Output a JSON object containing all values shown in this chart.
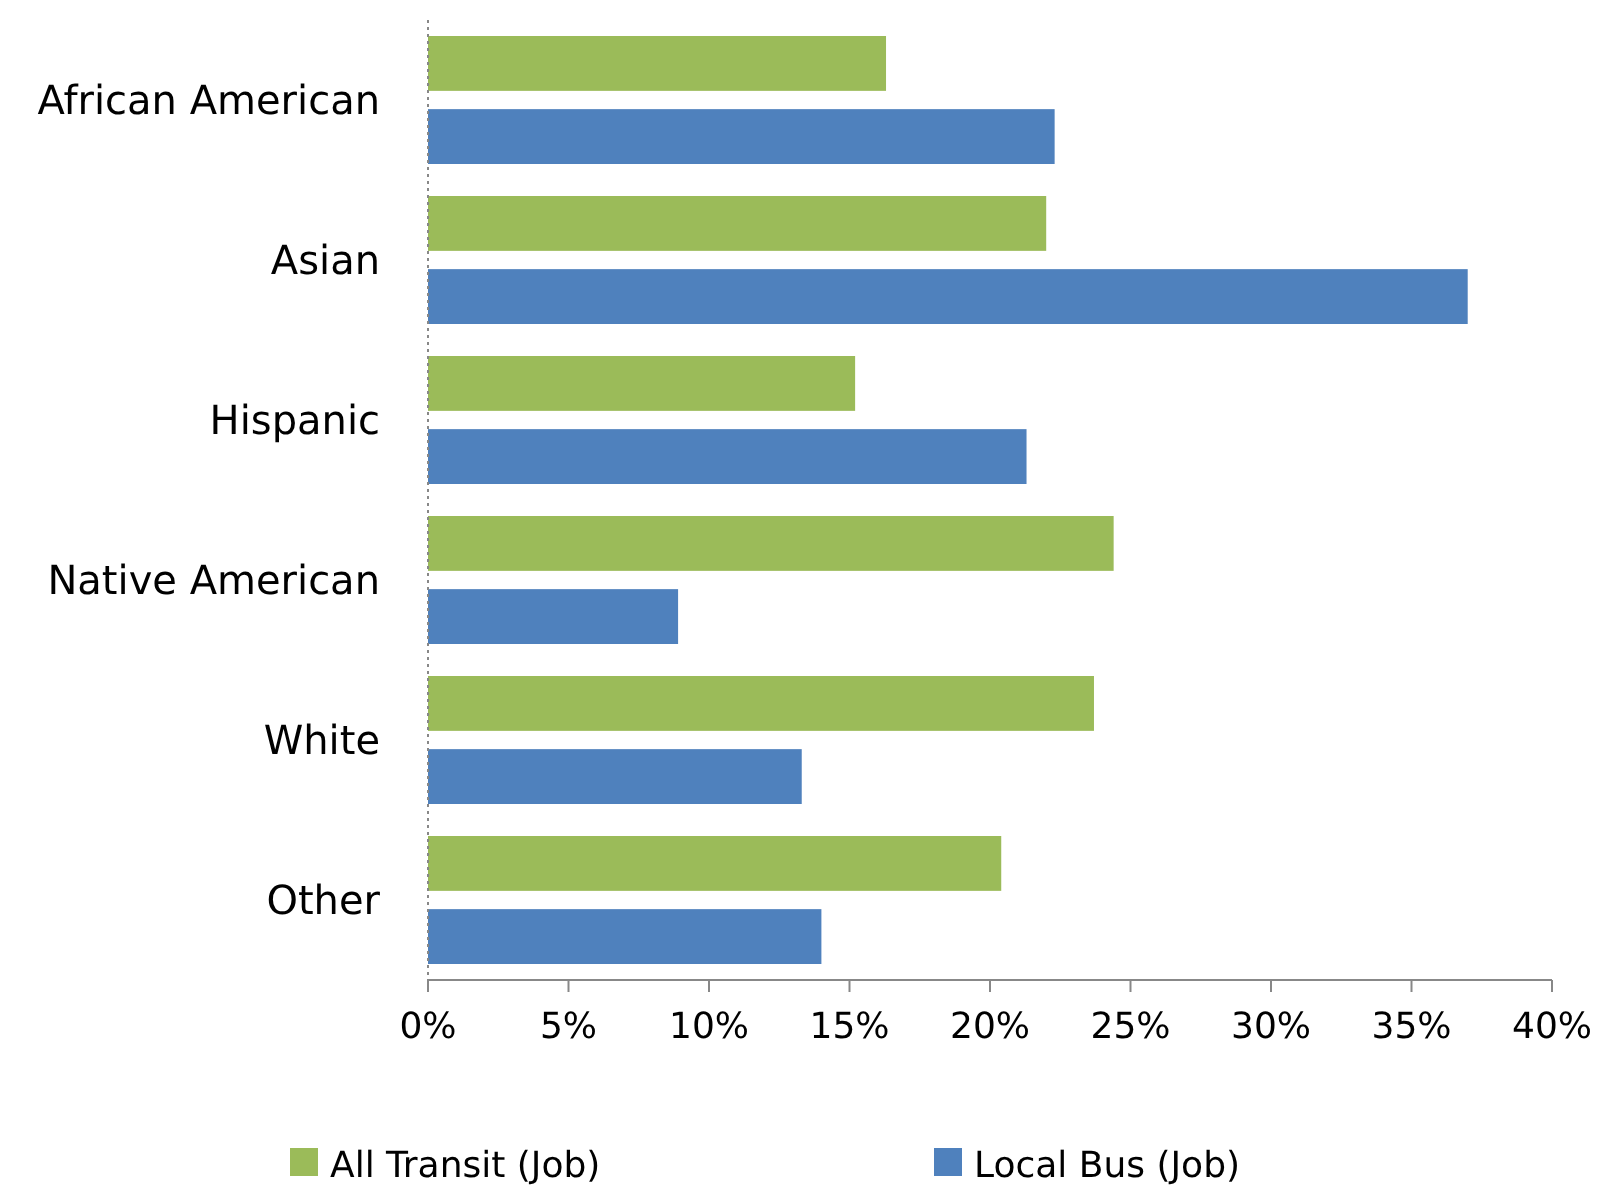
{
  "chart_data": {
    "type": "bar",
    "orientation": "horizontal",
    "categories": [
      "African American",
      "Asian",
      "Hispanic",
      "Native American",
      "White",
      "Other"
    ],
    "series": [
      {
        "name": "All Transit (Job)",
        "color": "#9bbb59",
        "values": [
          16.3,
          22.0,
          15.2,
          24.4,
          23.7,
          20.4
        ]
      },
      {
        "name": "Local Bus (Job)",
        "color": "#4f81bd",
        "values": [
          22.3,
          37.0,
          21.3,
          8.9,
          13.3,
          14.0
        ]
      }
    ],
    "xlim": [
      0,
      40
    ],
    "xticks": [
      {
        "value": 0,
        "label": "0%"
      },
      {
        "value": 5,
        "label": "5%"
      },
      {
        "value": 10,
        "label": "10%"
      },
      {
        "value": 15,
        "label": "15%"
      },
      {
        "value": 20,
        "label": "20%"
      },
      {
        "value": 25,
        "label": "25%"
      },
      {
        "value": 30,
        "label": "30%"
      },
      {
        "value": 35,
        "label": "35%"
      },
      {
        "value": 40,
        "label": "40%"
      }
    ],
    "grid": false,
    "legend": "bottom"
  }
}
